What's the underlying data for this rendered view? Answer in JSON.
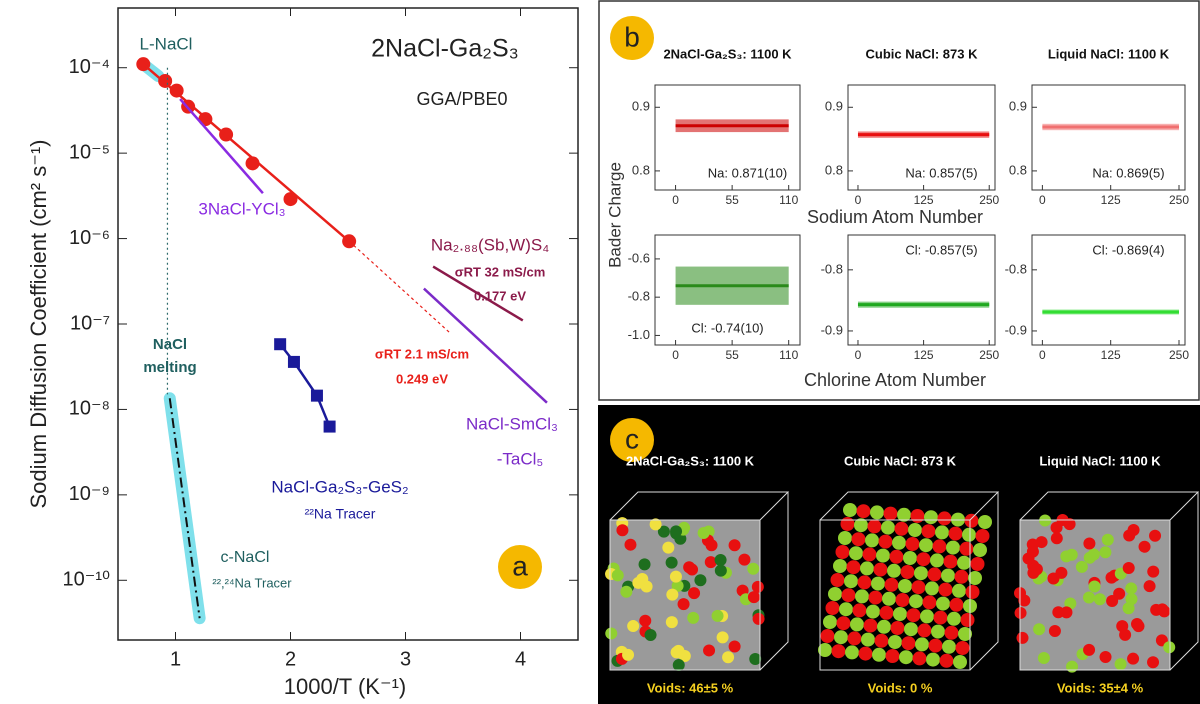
{
  "chart_data": {
    "type": "line",
    "log_y": true,
    "x_label": "1000/T (K⁻¹)",
    "y_label": "Sodium Diffusion Coefficient (cm² s⁻¹)",
    "xlim": [
      0.5,
      4.5
    ],
    "xticks": [
      1,
      2,
      3,
      4
    ],
    "ylim": [
      2e-11,
      0.0005
    ],
    "yticks": [
      {
        "value": 0.0001,
        "label": "10⁻⁴"
      },
      {
        "value": 1e-05,
        "label": "10⁻⁵"
      },
      {
        "value": 1e-06,
        "label": "10⁻⁶"
      },
      {
        "value": 1e-07,
        "label": "10⁻⁷"
      },
      {
        "value": 1e-08,
        "label": "10⁻⁸"
      },
      {
        "value": 1e-09,
        "label": "10⁻⁹"
      },
      {
        "value": 1e-10,
        "label": "10⁻¹⁰"
      }
    ],
    "series": [
      {
        "color": "#5fd8e6",
        "style": "band",
        "x": [
          0.72,
          0.85
        ],
        "values": [
          0.00011,
          8e-05
        ]
      },
      {
        "color": "#e8201a",
        "style": "markers",
        "x": [
          0.72,
          0.91,
          1.01,
          1.11,
          1.26,
          1.44,
          1.67,
          2.0,
          2.51
        ],
        "values": [
          0.00011,
          7e-05,
          5.4e-05,
          3.5e-05,
          2.5e-05,
          1.65e-05,
          7.6e-06,
          2.9e-06,
          9.3e-07
        ]
      },
      {
        "color": "#e8201a",
        "style": "line",
        "x": [
          0.72,
          2.51
        ],
        "values": [
          0.00011,
          9.3e-07
        ]
      },
      {
        "color": "#e8201a",
        "style": "dashed",
        "x": [
          2.51,
          3.39
        ],
        "values": [
          9.3e-07,
          7.8e-08
        ]
      },
      {
        "color": "#8a2be2",
        "style": "line",
        "x": [
          1.04,
          1.76
        ],
        "values": [
          4.3e-05,
          3.4e-06
        ]
      },
      {
        "color": "#8b1a4a",
        "style": "line",
        "x": [
          3.24,
          4.02
        ],
        "values": [
          4.7e-07,
          1.1e-07
        ]
      },
      {
        "color": "#7b2bc8",
        "style": "line",
        "x": [
          3.16,
          4.23
        ],
        "values": [
          2.6e-07,
          1.2e-08
        ]
      },
      {
        "color": "#1a1a9a",
        "style": "markers-square",
        "x": [
          1.91,
          2.03,
          2.23,
          2.34
        ],
        "values": [
          5.8e-08,
          3.6e-08,
          1.45e-08,
          6.3e-09
        ]
      },
      {
        "color": "#5fd8e6",
        "style": "band-dashdot",
        "x": [
          0.95,
          1.21
        ],
        "values": [
          1.35e-08,
          3.6e-11
        ]
      },
      {
        "color": "#2f6b6b",
        "style": "dotted",
        "x": [
          0.93,
          0.93
        ],
        "values": [
          0.0001,
          1.5e-08
        ]
      }
    ],
    "annotations": [
      {
        "text": "L-NaCl",
        "color": "#1f5f5f"
      },
      {
        "text": "2NaCl-Ga₂S₃",
        "color": "#222222"
      },
      {
        "text": "GGA/PBE0",
        "color": "#222222"
      },
      {
        "text": "3NaCl-YCl₃",
        "color": "#8a2be2"
      },
      {
        "text": "Na₂.₈₈(Sb,W)S₄",
        "color": "#8b1a4a"
      },
      {
        "text": "σRT 32 mS/cm",
        "color": "#8b1a4a"
      },
      {
        "text": "0.177 eV",
        "color": "#8b1a4a"
      },
      {
        "text": "σRT 2.1 mS/cm",
        "color": "#e8201a"
      },
      {
        "text": "0.249 eV",
        "color": "#e8201a"
      },
      {
        "text": "NaCl",
        "color": "#1f5f5f"
      },
      {
        "text": "melting",
        "color": "#1f5f5f"
      },
      {
        "text": "NaCl-SmCl₃",
        "color": "#7b2bc8"
      },
      {
        "text": "-TaCl₅",
        "color": "#7b2bc8"
      },
      {
        "text": "NaCl-Ga₂S₃-GeS₂",
        "color": "#1a1a9a"
      },
      {
        "text": "²²Na Tracer",
        "color": "#1a1a9a"
      },
      {
        "text": "c-NaCl",
        "color": "#1f5f5f"
      },
      {
        "text": "²²,²⁴Na Tracer",
        "color": "#1f5f5f"
      }
    ],
    "badge": "a"
  },
  "panel_b": {
    "badge": "b",
    "y_label": "Bader Charge",
    "x_labels": [
      "Sodium Atom Number",
      "Chlorine Atom Number"
    ],
    "titles": [
      "2NaCl-Ga₂S₃: 1100 K",
      "Cubic NaCl: 873 K",
      "Liquid NaCl: 1100 K"
    ],
    "plots": [
      {
        "color": "#cc0000",
        "xlim": [
          -20,
          121
        ],
        "xticks": [
          0,
          55,
          110
        ],
        "ylim": [
          0.77,
          0.935
        ],
        "yticks": [
          0.8,
          0.9
        ],
        "values": [
          0.871
        ],
        "errors": [
          0.01
        ],
        "value_labels": [
          "Na: 0.871(10)"
        ]
      },
      {
        "color": "#e81010",
        "xlim": [
          -19,
          261
        ],
        "xticks": [
          0,
          125,
          250
        ],
        "ylim": [
          0.77,
          0.935
        ],
        "yticks": [
          0.8,
          0.9
        ],
        "values": [
          0.857
        ],
        "errors": [
          0.005
        ],
        "value_labels": [
          "Na: 0.857(5)"
        ]
      },
      {
        "color": "#f07070",
        "xlim": [
          -19,
          261
        ],
        "xticks": [
          0,
          125,
          250
        ],
        "ylim": [
          0.77,
          0.935
        ],
        "yticks": [
          0.8,
          0.9
        ],
        "values": [
          0.869
        ],
        "errors": [
          0.005
        ],
        "value_labels": [
          "Na: 0.869(5)"
        ]
      },
      {
        "color": "#2a8a1a",
        "xlim": [
          -20,
          121
        ],
        "xticks": [
          0,
          55,
          110
        ],
        "ylim": [
          -1.05,
          -0.475
        ],
        "yticks": [
          -0.6,
          -0.8,
          {
            "value": -1,
            "label": "-1.0"
          }
        ],
        "values": [
          -0.74
        ],
        "errors": [
          0.1
        ],
        "value_labels": [
          "Cl: -0.74(10)"
        ]
      },
      {
        "color": "#1fa81f",
        "xlim": [
          -19,
          261
        ],
        "xticks": [
          0,
          125,
          250
        ],
        "ylim": [
          -0.923,
          -0.743
        ],
        "yticks": [
          -0.8,
          -0.9
        ],
        "values": [
          -0.857
        ],
        "errors": [
          0.005
        ],
        "value_labels": [
          "Cl: -0.857(5)"
        ]
      },
      {
        "color": "#33dd33",
        "xlim": [
          -19,
          261
        ],
        "xticks": [
          0,
          125,
          250
        ],
        "ylim": [
          -0.923,
          -0.743
        ],
        "yticks": [
          -0.8,
          -0.9
        ],
        "values": [
          -0.869
        ],
        "errors": [
          0.004
        ],
        "value_labels": [
          "Cl: -0.869(4)"
        ]
      }
    ]
  },
  "panel_c": {
    "badge": "c",
    "titles": [
      "2NaCl-Ga₂S₃: 1100 K",
      "Cubic NaCl: 873 K",
      "Liquid NaCl: 1100 K"
    ],
    "voids": [
      "Voids: 46±5 %",
      "Voids: 0 %",
      "Voids: 35±4 %"
    ]
  }
}
